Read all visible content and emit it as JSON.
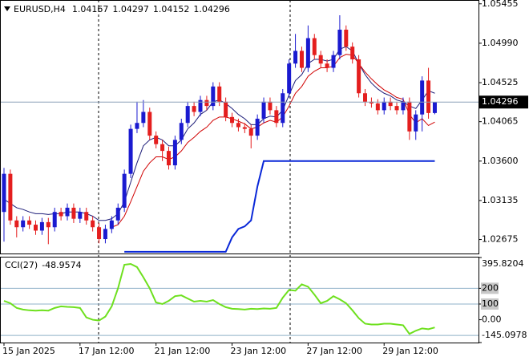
{
  "chart_data": [
    {
      "type": "candlestick",
      "title": "EURUSD,H4",
      "x": [
        0,
        1,
        2,
        3,
        4,
        5,
        6,
        7,
        8,
        9,
        10,
        11,
        12,
        13,
        14,
        15,
        16,
        17,
        18,
        19,
        20,
        21,
        22,
        23,
        24,
        25,
        26,
        27,
        28,
        29,
        30,
        31,
        32,
        33,
        34,
        35,
        36,
        37,
        38,
        39,
        40,
        41,
        42,
        43,
        44,
        45,
        46,
        47,
        48,
        49,
        50,
        51,
        52,
        53,
        54,
        55,
        56,
        57,
        58,
        59,
        60,
        61,
        62,
        63,
        64,
        65,
        66,
        67,
        68
      ],
      "open": [
        1.03,
        1.0345,
        1.029,
        1.0282,
        1.029,
        1.0285,
        1.0278,
        1.0288,
        1.0282,
        1.03,
        1.0295,
        1.0305,
        1.0292,
        1.03,
        1.029,
        1.0282,
        1.0268,
        1.028,
        1.029,
        1.0305,
        1.0345,
        1.0398,
        1.0405,
        1.0418,
        1.039,
        1.038,
        1.0372,
        1.0355,
        1.0385,
        1.0405,
        1.0425,
        1.0418,
        1.0432,
        1.0425,
        1.0448,
        1.043,
        1.0412,
        1.0405,
        1.04,
        1.0398,
        1.039,
        1.041,
        1.043,
        1.042,
        1.0405,
        1.044,
        1.0475,
        1.049,
        1.047,
        1.0505,
        1.0485,
        1.0475,
        1.047,
        1.0485,
        1.0515,
        1.0495,
        1.048,
        1.044,
        1.043,
        1.0428,
        1.042,
        1.043,
        1.0425,
        1.042,
        1.043,
        1.0395,
        1.0415,
        1.0455,
        1.04167
      ],
      "high": [
        1.0352,
        1.035,
        1.0295,
        1.0295,
        1.0295,
        1.029,
        1.0293,
        1.0293,
        1.0305,
        1.0305,
        1.031,
        1.031,
        1.0305,
        1.0305,
        1.0295,
        1.0287,
        1.0285,
        1.0295,
        1.031,
        1.035,
        1.0403,
        1.043,
        1.0432,
        1.0423,
        1.0395,
        1.0385,
        1.0377,
        1.039,
        1.041,
        1.043,
        1.043,
        1.0437,
        1.0437,
        1.0453,
        1.0453,
        1.0435,
        1.0417,
        1.041,
        1.0405,
        1.0403,
        1.0415,
        1.0435,
        1.0435,
        1.0425,
        1.0445,
        1.048,
        1.051,
        1.0495,
        1.052,
        1.051,
        1.049,
        1.048,
        1.049,
        1.0532,
        1.052,
        1.05,
        1.0485,
        1.0445,
        1.0435,
        1.0433,
        1.0435,
        1.0435,
        1.043,
        1.0435,
        1.0435,
        1.042,
        1.046,
        1.047,
        1.04297
      ],
      "low": [
        1.0265,
        1.0285,
        1.027,
        1.0277,
        1.028,
        1.0273,
        1.0273,
        1.0262,
        1.0277,
        1.029,
        1.029,
        1.0287,
        1.0287,
        1.0285,
        1.0277,
        1.0263,
        1.0263,
        1.0275,
        1.0285,
        1.03,
        1.034,
        1.0393,
        1.04,
        1.0385,
        1.0375,
        1.036,
        1.035,
        1.035,
        1.038,
        1.04,
        1.0413,
        1.0413,
        1.042,
        1.042,
        1.0425,
        1.0407,
        1.04,
        1.0395,
        1.0393,
        1.0375,
        1.0385,
        1.0405,
        1.0415,
        1.04,
        1.04,
        1.0435,
        1.047,
        1.0465,
        1.0465,
        1.048,
        1.047,
        1.0465,
        1.0465,
        1.048,
        1.049,
        1.0475,
        1.0435,
        1.0425,
        1.0423,
        1.0415,
        1.0415,
        1.042,
        1.0415,
        1.0415,
        1.0385,
        1.0385,
        1.0395,
        1.041,
        1.04152
      ],
      "close": [
        1.0345,
        1.029,
        1.0282,
        1.029,
        1.0285,
        1.0278,
        1.0288,
        1.0282,
        1.03,
        1.0295,
        1.0305,
        1.0292,
        1.03,
        1.029,
        1.0282,
        1.0268,
        1.028,
        1.029,
        1.0305,
        1.0345,
        1.0398,
        1.0405,
        1.0418,
        1.039,
        1.038,
        1.0372,
        1.0355,
        1.0385,
        1.0405,
        1.0425,
        1.0418,
        1.0432,
        1.0425,
        1.0448,
        1.043,
        1.0412,
        1.0405,
        1.04,
        1.0398,
        1.039,
        1.041,
        1.043,
        1.042,
        1.0405,
        1.044,
        1.0475,
        1.049,
        1.047,
        1.0505,
        1.0485,
        1.0475,
        1.047,
        1.0485,
        1.0515,
        1.0495,
        1.048,
        1.044,
        1.043,
        1.0428,
        1.042,
        1.043,
        1.0425,
        1.042,
        1.043,
        1.0395,
        1.0415,
        1.0455,
        1.04167,
        1.04296
      ],
      "up_color": "#1a1ad0",
      "down_color": "#e41e1e",
      "lines": [
        {
          "color": "#1c1c78",
          "values": [
            1.0315,
            1.031,
            1.0305,
            1.0303,
            1.03,
            1.0298,
            1.0298,
            1.0297,
            1.0298,
            1.0298,
            1.03,
            1.03,
            1.03,
            1.0298,
            1.0295,
            1.029,
            1.029,
            1.0292,
            1.0298,
            1.0312,
            1.0335,
            1.0358,
            1.0378,
            1.0385,
            1.0388,
            1.0385,
            1.0378,
            1.0378,
            1.0385,
            1.0398,
            1.0405,
            1.0415,
            1.042,
            1.043,
            1.0432,
            1.0428,
            1.0422,
            1.0415,
            1.041,
            1.0403,
            1.0403,
            1.041,
            1.0413,
            1.0412,
            1.042,
            1.0438,
            1.0455,
            1.0462,
            1.0475,
            1.048,
            1.048,
            1.0478,
            1.048,
            1.0492,
            1.0495,
            1.049,
            1.0475,
            1.0462,
            1.0452,
            1.0445,
            1.044,
            1.0437,
            1.0432,
            1.043,
            1.0425,
            1.0422,
            1.0432,
            1.0443,
            1.044
          ]
        },
        {
          "color": "#d00000",
          "values": [
            null,
            null,
            null,
            null,
            null,
            null,
            null,
            null,
            null,
            null,
            null,
            null,
            null,
            null,
            null,
            null,
            null,
            1.0282,
            1.0285,
            1.0295,
            1.0312,
            1.033,
            1.0348,
            1.0358,
            1.0365,
            1.0365,
            1.0362,
            1.0365,
            1.0372,
            1.0382,
            1.0388,
            1.0395,
            1.04,
            1.0408,
            1.0412,
            1.0412,
            1.041,
            1.0407,
            1.0404,
            1.0398,
            1.04,
            1.0405,
            1.0408,
            1.0406,
            1.0412,
            1.0425,
            1.044,
            1.0448,
            1.046,
            1.0466,
            1.047,
            1.047,
            1.0472,
            1.0482,
            1.0486,
            1.0485,
            1.0475,
            1.0465,
            1.0457,
            1.045,
            1.0444,
            1.044,
            1.0435,
            1.0433,
            1.0415,
            1.0405,
            1.041,
            1.0402,
            1.0406
          ]
        },
        {
          "color": "#0a28d8",
          "values": [
            null,
            null,
            null,
            null,
            null,
            null,
            null,
            null,
            null,
            null,
            null,
            null,
            null,
            null,
            null,
            null,
            null,
            null,
            null,
            1.0253,
            1.0253,
            1.0253,
            1.0253,
            1.0253,
            1.0253,
            1.0253,
            1.0253,
            1.0253,
            1.0253,
            1.0253,
            1.0253,
            1.0253,
            1.0253,
            1.0253,
            1.0253,
            1.0253,
            1.027,
            1.028,
            1.0283,
            1.029,
            1.033,
            1.036,
            1.036,
            1.036,
            1.036,
            1.036,
            1.036,
            1.036,
            1.036,
            1.036,
            1.036,
            1.036,
            1.036,
            1.036,
            1.036,
            1.036,
            1.036,
            1.036,
            1.036,
            1.036,
            1.036,
            1.036,
            1.036,
            1.036,
            1.036,
            1.036,
            1.036,
            1.036,
            1.036
          ]
        }
      ],
      "xlim": [
        -0.63,
        74.9
      ],
      "ylim": [
        1.0251,
        1.055
      ],
      "yticks": [
        1.05455,
        {
          "value": 1.0499,
          "label": "1.04990"
        },
        1.04525,
        1.04065,
        {
          "value": 1.036,
          "label": "1.03600"
        },
        1.03135,
        1.02675
      ]
    },
    {
      "type": "line",
      "title": "CCI(27)",
      "color": "#6ee01e",
      "x": [
        0,
        1,
        2,
        3,
        4,
        5,
        6,
        7,
        8,
        9,
        10,
        11,
        12,
        13,
        14,
        15,
        16,
        17,
        18,
        19,
        20,
        21,
        22,
        23,
        24,
        25,
        26,
        27,
        28,
        29,
        30,
        31,
        32,
        33,
        34,
        35,
        36,
        37,
        38,
        39,
        40,
        41,
        42,
        43,
        44,
        45,
        46,
        47,
        48,
        49,
        50,
        51,
        52,
        53,
        54,
        55,
        56,
        57,
        58,
        59,
        60,
        61,
        62,
        63,
        64,
        65,
        66,
        67,
        68
      ],
      "values": [
        120,
        105,
        75,
        65,
        60,
        58,
        60,
        58,
        75,
        85,
        82,
        80,
        75,
        15,
        0,
        -5,
        20,
        85,
        200,
        350,
        355,
        335,
        270,
        200,
        110,
        100,
        120,
        150,
        155,
        135,
        115,
        120,
        115,
        125,
        100,
        80,
        70,
        68,
        65,
        70,
        68,
        72,
        70,
        75,
        140,
        190,
        185,
        225,
        210,
        160,
        105,
        120,
        150,
        130,
        105,
        60,
        10,
        -25,
        -30,
        -30,
        -25,
        -25,
        -30,
        -35,
        -90,
        -70,
        -55,
        -60,
        -48.9574
      ],
      "levels": [
        200,
        100,
        -100
      ],
      "level_color": "#8fb0c8",
      "xlim": [
        -0.63,
        74.9
      ],
      "ylim": [
        -145.0978,
        395.8204
      ],
      "yticks": [
        395.8204,
        200,
        100,
        {
          "value": 0,
          "label": "0.00"
        },
        -145.0978
      ],
      "xticks": [
        {
          "value": 0,
          "label": "15 Jan 2025"
        },
        {
          "value": 12,
          "label": "17 Jan 12:00"
        },
        {
          "value": 24,
          "label": "21 Jan 12:00"
        },
        {
          "value": 36,
          "label": "23 Jan 12:00"
        },
        {
          "value": 48,
          "label": "27 Jan 12:00"
        },
        {
          "value": 60,
          "label": "29 Jan 12:00"
        }
      ]
    }
  ]
}
